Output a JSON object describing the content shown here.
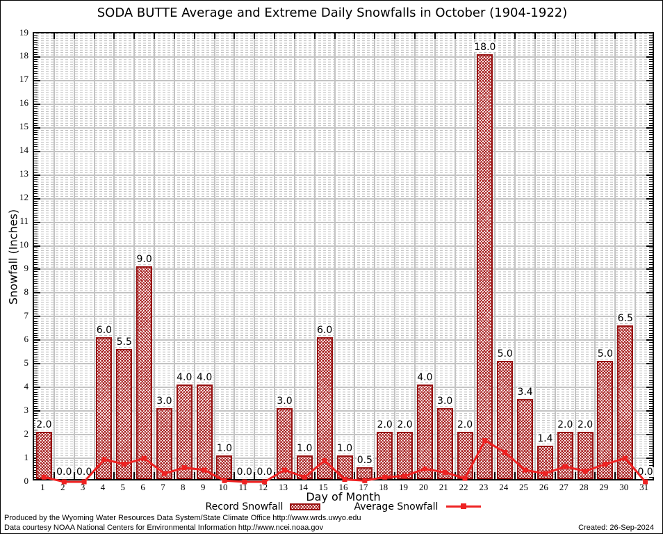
{
  "title": "SODA BUTTE Average and Extreme Daily Snowfalls in October (1904-1922)",
  "axes": {
    "x_label": "Day of Month",
    "y_label": "Snowfall (Inches)"
  },
  "legend": {
    "record": "Record Snowfall",
    "average": "Average Snowfall"
  },
  "footer": {
    "line1": "Produced by the Wyoming Water Resources Data System/State Climate Office http://www.wrds.uwyo.edu",
    "line2": "Data courtesy NOAA National Centers for Environmental Information http://www.ncei.noaa.gov",
    "created": "Created: 26-Sep-2024"
  },
  "colors": {
    "bar_edge": "#971111",
    "bar_hatch": "#a31616",
    "average_line": "#ee2222",
    "grid_major": "#c3c3c3",
    "grid_minor": "#bdbdbd",
    "axis": "#000000",
    "background": "#ffffff"
  },
  "chart_data": {
    "type": "bar",
    "title": "SODA BUTTE Average and Extreme Daily Snowfalls in October (1904-1922)",
    "xlabel": "Day of Month",
    "ylabel": "Snowfall (Inches)",
    "ylim": [
      0,
      19
    ],
    "xlim": [
      1,
      31
    ],
    "grid": true,
    "legend_position": "bottom",
    "x": [
      1,
      2,
      3,
      4,
      5,
      6,
      7,
      8,
      9,
      10,
      11,
      12,
      13,
      14,
      15,
      16,
      17,
      18,
      19,
      20,
      21,
      22,
      23,
      24,
      25,
      26,
      27,
      28,
      29,
      30,
      31
    ],
    "series": [
      {
        "name": "Record Snowfall",
        "type": "bar",
        "values": [
          2.0,
          0.0,
          0.0,
          6.0,
          5.5,
          9.0,
          3.0,
          4.0,
          4.0,
          1.0,
          0.0,
          0.0,
          3.0,
          1.0,
          6.0,
          1.0,
          0.5,
          2.0,
          2.0,
          4.0,
          3.0,
          2.0,
          18.0,
          5.0,
          3.4,
          1.4,
          2.0,
          2.0,
          5.0,
          6.5,
          0.0
        ]
      },
      {
        "name": "Average Snowfall",
        "type": "line",
        "values": [
          0.2,
          0.0,
          0.0,
          0.95,
          0.75,
          1.0,
          0.35,
          0.6,
          0.5,
          0.05,
          0.0,
          0.0,
          0.5,
          0.2,
          0.9,
          0.1,
          0.05,
          0.2,
          0.25,
          0.55,
          0.4,
          0.15,
          1.75,
          1.25,
          0.5,
          0.35,
          0.65,
          0.45,
          0.75,
          1.0,
          0.0
        ]
      }
    ],
    "bar_value_labels": [
      "2.0",
      "0.0",
      "0.0",
      "6.0",
      "5.5",
      "9.0",
      "3.0",
      "4.0",
      "4.0",
      "1.0",
      "0.0",
      "0.0",
      "3.0",
      "1.0",
      "6.0",
      "1.0",
      "0.5",
      "2.0",
      "2.0",
      "4.0",
      "3.0",
      "2.0",
      "18.0",
      "5.0",
      "3.4",
      "1.4",
      "2.0",
      "2.0",
      "5.0",
      "6.5",
      "0.0"
    ],
    "y_tick_labels": [
      "0",
      "1",
      "2",
      "3",
      "4",
      "5",
      "6",
      "7",
      "8",
      "9",
      "10",
      "11",
      "12",
      "13",
      "14",
      "15",
      "16",
      "17",
      "18",
      "19"
    ]
  }
}
